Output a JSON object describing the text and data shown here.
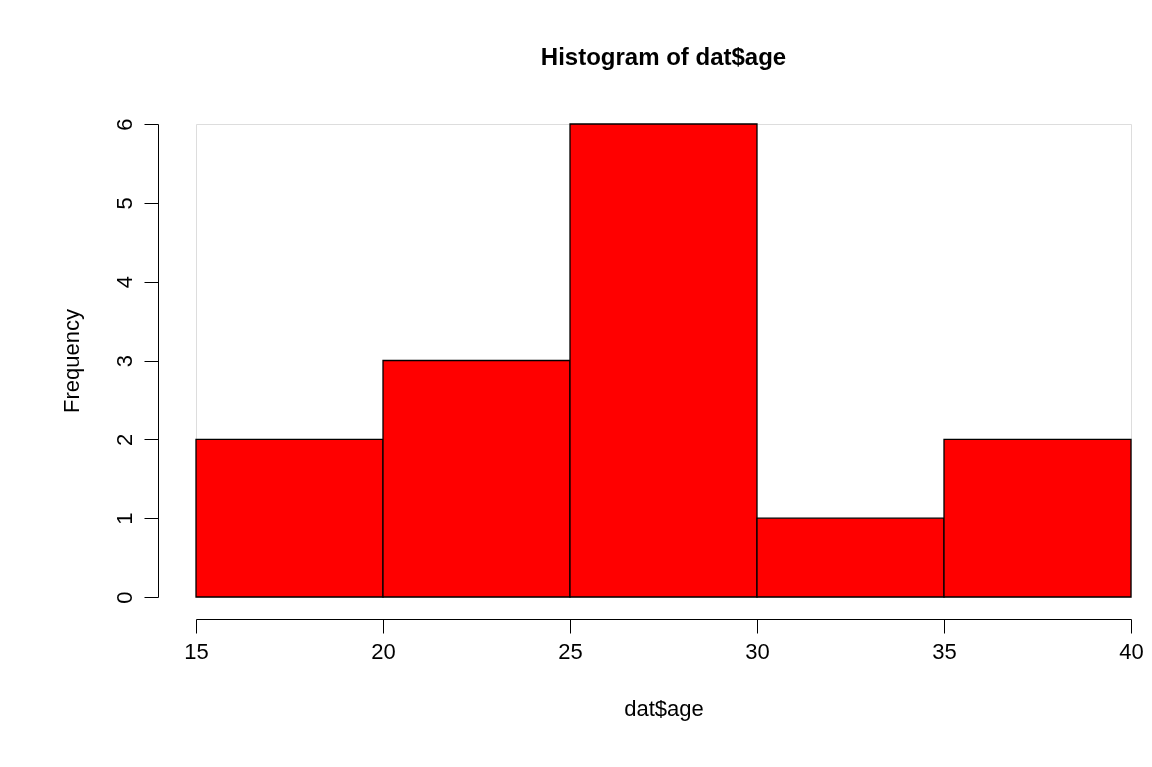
{
  "chart_data": {
    "type": "histogram",
    "title": "Histogram of dat$age",
    "xlabel": "dat$age",
    "ylabel": "Frequency",
    "bins": [
      15,
      20,
      25,
      30,
      35,
      40
    ],
    "values": [
      2,
      3,
      6,
      1,
      2
    ],
    "color": "#ff0000",
    "xlim": [
      15,
      40
    ],
    "ylim": [
      0,
      6
    ],
    "xticks": [
      15,
      20,
      25,
      30,
      35,
      40
    ],
    "yticks": [
      0,
      1,
      2,
      3,
      4,
      5,
      6
    ]
  }
}
